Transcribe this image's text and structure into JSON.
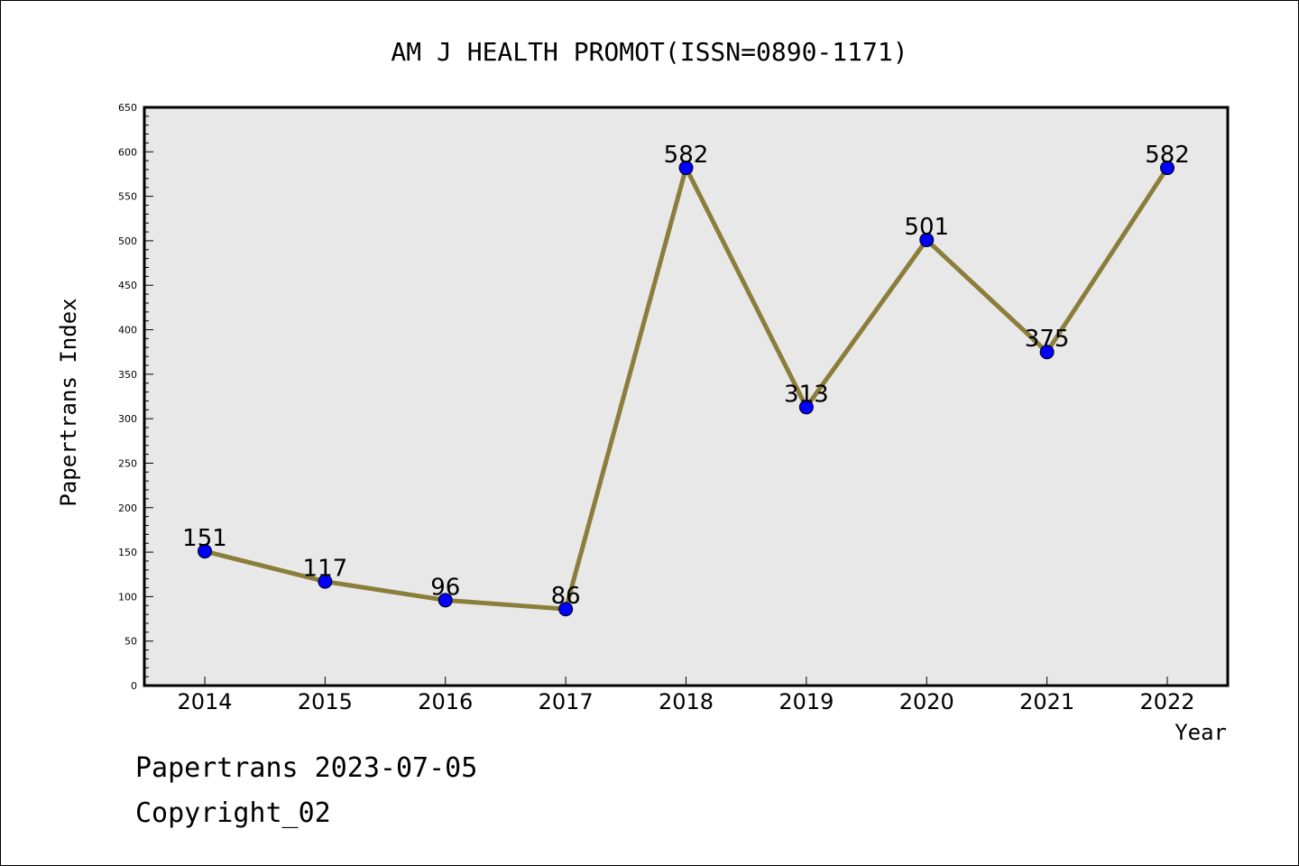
{
  "chart_data": {
    "type": "line",
    "title": "AM J HEALTH PROMOT(ISSN=0890-1171)",
    "xlabel": "Year",
    "ylabel": "Papertrans Index",
    "categories": [
      "2014",
      "2015",
      "2016",
      "2017",
      "2018",
      "2019",
      "2020",
      "2021",
      "2022"
    ],
    "series": [
      {
        "values": [
          151,
          117,
          96,
          86,
          582,
          313,
          501,
          375,
          582
        ]
      }
    ],
    "data_labels": [
      "151",
      "117",
      "96",
      "86",
      "582",
      "313",
      "501",
      "375",
      "582"
    ],
    "ylim": [
      0,
      650
    ],
    "y_ticks": [
      "0",
      "50",
      "100",
      "150",
      "200",
      "250",
      "300",
      "350",
      "400",
      "450",
      "500",
      "550",
      "600",
      "650"
    ],
    "grid": false,
    "legend": "none",
    "colors": {
      "line": "#8b7d3a",
      "marker": "#0000ff",
      "plot_background": "#e8e8e8"
    }
  },
  "footer": {
    "date_text": "Papertrans 2023-07-05",
    "copyright_text": "Copyright_02"
  }
}
